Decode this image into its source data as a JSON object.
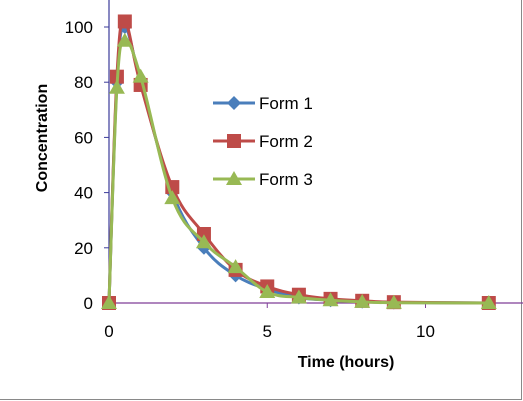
{
  "chart_data": {
    "type": "line",
    "xlabel": "Time (hours)",
    "ylabel": "Concentration",
    "xlim": [
      0,
      13
    ],
    "ylim": [
      0,
      105
    ],
    "x_ticks": [
      0,
      5,
      10
    ],
    "y_ticks": [
      0,
      20,
      40,
      60,
      80,
      100
    ],
    "grid": false,
    "legend_position": "right",
    "series": [
      {
        "name": "Form 1",
        "color": "#4A7EBB",
        "marker": "diamond",
        "x": [
          0,
          0.25,
          0.5,
          1,
          2,
          3,
          4,
          5,
          6,
          7,
          8,
          9,
          12
        ],
        "y": [
          0,
          80,
          100,
          80,
          40,
          20,
          10,
          5,
          2,
          1,
          0.5,
          0.2,
          0
        ]
      },
      {
        "name": "Form 2",
        "color": "#BE4B48",
        "marker": "square",
        "x": [
          0,
          0.25,
          0.5,
          1,
          2,
          3,
          4,
          5,
          6,
          7,
          8,
          9,
          12
        ],
        "y": [
          0,
          82,
          102,
          79,
          42,
          25,
          12,
          6,
          3,
          1.5,
          0.8,
          0.3,
          0
        ]
      },
      {
        "name": "Form 3",
        "color": "#98B954",
        "marker": "triangle",
        "x": [
          0,
          0.25,
          0.5,
          1,
          2,
          3,
          4,
          5,
          6,
          7,
          8,
          9,
          12
        ],
        "y": [
          0,
          78,
          95,
          82,
          38,
          22,
          13,
          4,
          2,
          1,
          0.4,
          0.1,
          0
        ]
      }
    ]
  }
}
